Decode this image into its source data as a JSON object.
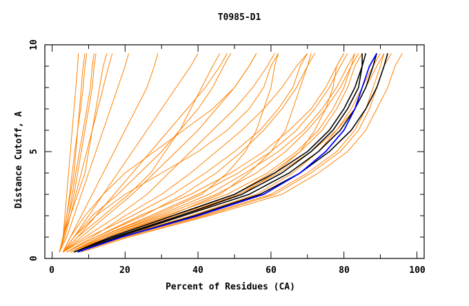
{
  "chart_data": {
    "type": "line",
    "title": "T0985-D1",
    "xlabel": "Percent of Residues (CA)",
    "ylabel": "Distance Cutoff, A",
    "xlim": [
      -2,
      102
    ],
    "ylim": [
      0,
      10
    ],
    "x_ticks": [
      "0",
      "20",
      "40",
      "60",
      "80",
      "100"
    ],
    "y_ticks": [
      "0",
      "5",
      "10"
    ],
    "grid": false,
    "colors": {
      "others": "#ff8000",
      "highlight": "#000000",
      "selected": "#0000ff"
    },
    "cutoffs": [
      0.3,
      1,
      2,
      3,
      4,
      5,
      6,
      7,
      8,
      9,
      9.6
    ],
    "series_orange": [
      [
        5,
        13,
        28,
        41,
        48,
        53,
        56,
        58,
        60,
        61,
        62
      ],
      [
        6,
        15,
        32,
        46,
        54,
        60,
        64,
        66,
        68,
        70,
        71
      ],
      [
        6,
        17,
        36,
        52,
        61,
        68,
        72,
        75,
        77,
        78,
        80
      ],
      [
        7,
        20,
        42,
        61,
        71,
        79,
        84,
        87,
        89,
        91,
        93
      ],
      [
        8,
        21,
        43,
        63,
        73,
        81,
        86,
        89,
        92,
        94,
        96
      ],
      [
        4,
        12,
        25,
        36,
        45,
        52,
        58,
        63,
        67,
        70,
        72
      ],
      [
        5,
        14,
        30,
        45,
        56,
        64,
        70,
        75,
        79,
        82,
        84
      ],
      [
        6,
        16,
        34,
        50,
        60,
        68,
        74,
        78,
        81,
        83,
        85
      ],
      [
        3,
        10,
        22,
        33,
        42,
        50,
        57,
        62,
        66,
        68,
        70
      ],
      [
        4,
        11,
        20,
        30,
        38,
        45,
        52,
        58,
        63,
        67,
        70
      ],
      [
        5,
        15,
        31,
        48,
        59,
        67,
        73,
        77,
        80,
        82,
        83
      ],
      [
        6,
        18,
        38,
        56,
        66,
        73,
        78,
        82,
        85,
        88,
        90
      ],
      [
        7,
        19,
        41,
        60,
        70,
        78,
        83,
        86,
        88,
        90,
        91
      ],
      [
        5,
        13,
        27,
        40,
        51,
        60,
        67,
        72,
        76,
        79,
        81
      ],
      [
        4,
        12,
        24,
        38,
        49,
        58,
        65,
        71,
        75,
        78,
        80
      ],
      [
        6,
        17,
        35,
        51,
        62,
        71,
        78,
        83,
        86,
        89,
        91
      ],
      [
        5,
        14,
        29,
        43,
        53,
        62,
        69,
        74,
        78,
        81,
        83
      ],
      [
        3,
        8,
        15,
        22,
        28,
        34,
        40,
        45,
        50,
        54,
        56
      ],
      [
        3,
        6,
        10,
        14,
        18,
        22,
        26,
        30,
        34,
        38,
        40
      ],
      [
        3,
        5,
        8,
        11,
        14,
        17,
        20,
        23,
        26,
        28,
        29
      ],
      [
        3,
        7,
        12,
        17,
        22,
        27,
        32,
        37,
        42,
        46,
        48
      ],
      [
        3,
        9,
        18,
        26,
        32,
        38,
        44,
        50,
        55,
        59,
        61
      ],
      [
        2,
        4,
        6,
        8,
        10,
        12,
        14,
        16,
        18,
        20,
        21
      ],
      [
        3,
        6,
        12,
        20,
        30,
        40,
        48,
        54,
        58,
        60,
        62
      ],
      [
        3,
        5,
        9,
        14,
        20,
        28,
        36,
        44,
        50,
        54,
        56
      ],
      [
        3,
        7,
        14,
        21,
        27,
        31,
        35,
        38,
        41,
        44,
        46
      ],
      [
        3,
        6,
        11,
        18,
        24,
        30,
        35,
        40,
        44,
        47,
        49
      ],
      [
        2,
        3,
        4,
        5,
        6,
        6.5,
        7,
        7.5,
        8,
        8.5,
        9
      ],
      [
        2,
        3,
        4.5,
        6,
        7,
        8,
        9,
        10,
        11,
        11.5,
        12
      ],
      [
        2,
        3,
        5,
        7,
        9,
        10,
        11,
        12,
        13,
        14,
        15
      ],
      [
        2,
        3,
        3.5,
        4,
        4.5,
        5,
        5.5,
        6,
        6.5,
        7,
        7.2
      ],
      [
        2,
        3.5,
        5,
        6.5,
        8,
        9.5,
        11,
        12.5,
        14,
        15.5,
        16.5
      ],
      [
        2,
        3,
        4,
        4.8,
        5.5,
        6.2,
        7,
        7.8,
        8.5,
        9,
        9.5
      ],
      [
        2,
        3.2,
        4.5,
        5.5,
        6.5,
        7.5,
        8.5,
        9.5,
        10.5,
        11,
        11.5
      ]
    ],
    "series_black": [
      [
        6,
        16,
        33,
        50,
        61,
        70,
        76,
        80,
        83,
        85,
        86
      ],
      [
        7,
        18,
        36,
        54,
        65,
        73,
        79,
        83,
        86,
        88,
        89
      ],
      [
        7,
        19,
        39,
        57,
        68,
        76,
        82,
        86,
        89,
        91,
        92
      ],
      [
        6,
        17,
        35,
        52,
        63,
        71,
        77,
        81,
        84,
        85,
        85
      ]
    ],
    "series_blue": [
      7,
      19,
      40,
      58,
      68,
      75,
      80,
      83,
      85,
      87,
      89
    ]
  }
}
